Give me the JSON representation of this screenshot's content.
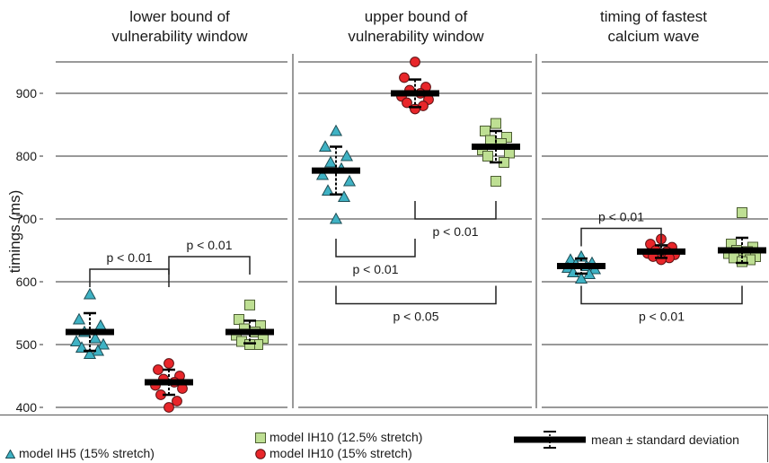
{
  "chart_data": {
    "type": "scatter",
    "ylabel": "timings (ms)",
    "ylim": [
      395,
      965
    ],
    "yticks": [
      400,
      500,
      600,
      700,
      800,
      900
    ],
    "grid": true,
    "panels": [
      {
        "title_line1": "lower bound of",
        "title_line2": "vulnerability window",
        "groups": [
          {
            "series": "model IH5 (15% stretch)",
            "shape": "triangle",
            "mean": 520,
            "sd": 30,
            "values": [
              580,
              540,
              530,
              520,
              510,
              505,
              500,
              495,
              490,
              485
            ]
          },
          {
            "series": "model IH10 (15% stretch)",
            "shape": "circle",
            "mean": 440,
            "sd": 20,
            "values": [
              470,
              460,
              450,
              445,
              440,
              435,
              430,
              420,
              410,
              400
            ]
          },
          {
            "series": "model IH10 (12.5% stretch)",
            "shape": "square",
            "mean": 520,
            "sd": 18,
            "values": [
              563,
              540,
              530,
              525,
              520,
              515,
              510,
              505,
              500,
              500
            ]
          }
        ],
        "comparisons": [
          {
            "from": 0,
            "to": 1,
            "label": "p < 0.01",
            "side": "above",
            "y": 620
          },
          {
            "from": 1,
            "to": 2,
            "label": "p < 0.01",
            "side": "above",
            "y": 640
          }
        ]
      },
      {
        "title_line1": "upper bound of",
        "title_line2": "vulnerability window",
        "groups": [
          {
            "series": "model IH5 (15% stretch)",
            "shape": "triangle",
            "mean": 777,
            "sd": 38,
            "values": [
              840,
              815,
              800,
              790,
              780,
              770,
              760,
              745,
              735,
              700
            ]
          },
          {
            "series": "model IH10 (15% stretch)",
            "shape": "circle",
            "mean": 900,
            "sd": 22,
            "values": [
              950,
              925,
              910,
              905,
              900,
              895,
              890,
              885,
              880,
              875
            ]
          },
          {
            "series": "model IH10 (12.5% stretch)",
            "shape": "square",
            "mean": 815,
            "sd": 25,
            "values": [
              852,
              840,
              830,
              825,
              820,
              810,
              805,
              800,
              790,
              760
            ]
          }
        ],
        "comparisons": [
          {
            "from": 1,
            "to": 2,
            "label": "p < 0.01",
            "side": "below",
            "y": 700
          },
          {
            "from": 0,
            "to": 1,
            "label": "p < 0.01",
            "side": "below",
            "y": 640
          },
          {
            "from": 0,
            "to": 2,
            "label": "p < 0.05",
            "side": "below",
            "y": 565
          }
        ]
      },
      {
        "title_line1": "timing of fastest",
        "title_line2": "calcium wave",
        "groups": [
          {
            "series": "model IH5 (15% stretch)",
            "shape": "triangle",
            "mean": 625,
            "sd": 12,
            "values": [
              640,
              635,
              630,
              628,
              625,
              622,
              620,
              615,
              612,
              605
            ]
          },
          {
            "series": "model IH10 (15% stretch)",
            "shape": "circle",
            "mean": 648,
            "sd": 10,
            "values": [
              668,
              660,
              655,
              650,
              648,
              645,
              643,
              640,
              638,
              635
            ]
          },
          {
            "series": "model IH10 (12.5% stretch)",
            "shape": "square",
            "mean": 650,
            "sd": 20,
            "values": [
              710,
              660,
              655,
              650,
              648,
              645,
              640,
              638,
              635,
              632
            ]
          }
        ],
        "comparisons": [
          {
            "from": 0,
            "to": 1,
            "label": "p < 0.01",
            "side": "above",
            "y": 685
          },
          {
            "from": 0,
            "to": 2,
            "label": "p < 0.01",
            "side": "below",
            "y": 565
          }
        ]
      }
    ],
    "legend": {
      "ih5": "model IH5 (15% stretch)",
      "ih10_125": "model IH10 (12.5% stretch)",
      "ih10_15": "model IH10 (15% stretch)",
      "mean_sd": "mean ± standard deviation"
    },
    "colors": {
      "triangle": "#3fb2c4",
      "circle": "#e8262a",
      "square": "#bedf93",
      "mean_bar": "#000000",
      "grid": "#333333"
    }
  }
}
